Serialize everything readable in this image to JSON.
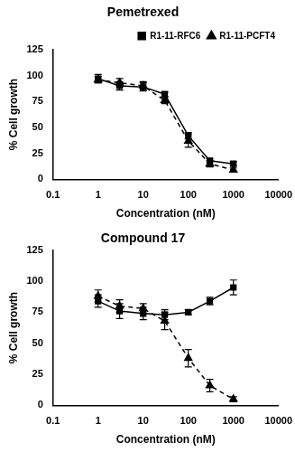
{
  "chart_data": [
    {
      "type": "line",
      "title": "Pemetrexed",
      "x_label": "Concentration (nM)",
      "y_label": "% Cell growth",
      "x": [
        1,
        3,
        10,
        30,
        100,
        300,
        1000
      ],
      "series": [
        {
          "name": "R1-11-RFC6",
          "color": "#000000",
          "marker": "square",
          "line_style": "solid",
          "values": [
            97,
            90,
            89,
            82,
            42,
            18,
            15
          ],
          "errors": [
            4,
            4,
            4,
            2,
            3,
            2,
            2
          ]
        },
        {
          "name": "R1-11-PCFT4",
          "color": "#000000",
          "marker": "triangle",
          "line_style": "dashed",
          "values": [
            96,
            93,
            90,
            76,
            37,
            15,
            9
          ],
          "errors": [
            3,
            4,
            4,
            3,
            6,
            3,
            2
          ]
        }
      ],
      "log": "x",
      "grid": false,
      "legend": "upper right",
      "xlim": [
        0.1,
        10000
      ],
      "xticks": [
        0.1,
        1,
        10,
        100,
        1000,
        10000
      ],
      "ylim": [
        0,
        125
      ],
      "yticks": [
        0,
        25,
        50,
        75,
        100,
        125
      ]
    },
    {
      "type": "line",
      "title": "Compound 17",
      "x_label": "Concentration (nM)",
      "y_label": "% Cell growth",
      "x": [
        1,
        3,
        10,
        30,
        100,
        300,
        1000
      ],
      "series": [
        {
          "color": "#000000",
          "marker": "square",
          "line_style": "solid",
          "values": [
            84,
            76,
            74,
            73,
            75,
            84,
            95
          ],
          "errors": [
            5,
            6,
            5,
            4,
            2,
            3,
            6
          ]
        },
        {
          "color": "#000000",
          "marker": "triangle",
          "line_style": "dashed",
          "values": [
            88,
            80,
            78,
            68,
            38,
            16,
            5
          ],
          "errors": [
            5,
            5,
            4,
            7,
            7,
            5,
            2
          ]
        }
      ],
      "log": "x",
      "grid": false,
      "xlim": [
        0.1,
        10000
      ],
      "xticks": [
        0.1,
        1,
        10,
        100,
        1000,
        10000
      ],
      "ylim": [
        0,
        125
      ],
      "yticks": [
        0,
        25,
        50,
        75,
        100,
        125
      ]
    }
  ]
}
